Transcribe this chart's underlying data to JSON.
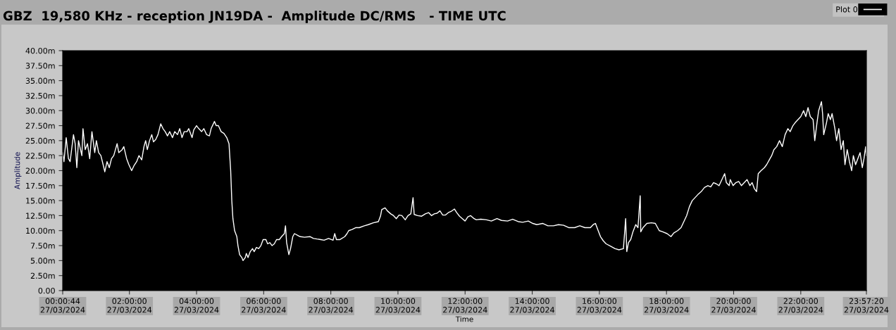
{
  "chart_data": {
    "type": "line",
    "title": "GBZ  19,580 KHz - reception JN19DA -  Amplitude DC/RMS   - TIME UTC",
    "xlabel": "Time",
    "ylabel": "Amplitude",
    "xlim": [
      "2024-03-27T00:00:44",
      "2024-03-27T23:57:20"
    ],
    "xticks": [
      {
        "value": "2024-03-27T00:00:44",
        "label": "00:00:44\n27/03/2024"
      },
      {
        "value": "2024-03-27T02:00",
        "label": "02:00:00\n27/03/2024"
      },
      {
        "value": "2024-03-27T04:00",
        "label": "04:00:00\n27/03/2024"
      },
      {
        "value": "2024-03-27T06:00",
        "label": "06:00:00\n27/03/2024"
      },
      {
        "value": "2024-03-27T08:00",
        "label": "08:00:00\n27/03/2024"
      },
      {
        "value": "2024-03-27T10:00",
        "label": "10:00:00\n27/03/2024"
      },
      {
        "value": "2024-03-27T12:00",
        "label": "12:00:00\n27/03/2024"
      },
      {
        "value": "2024-03-27T14:00",
        "label": "14:00:00\n27/03/2024"
      },
      {
        "value": "2024-03-27T16:00",
        "label": "16:00:00\n27/03/2024"
      },
      {
        "value": "2024-03-27T18:00",
        "label": "18:00:00\n27/03/2024"
      },
      {
        "value": "2024-03-27T20:00",
        "label": "20:00:00\n27/03/2024"
      },
      {
        "value": "2024-03-27T22:00",
        "label": "22:00:00\n27/03/2024"
      },
      {
        "value": "2024-03-27T23:57:20",
        "label": "23:57:20\n27/03/2024"
      }
    ],
    "ylim": [
      0,
      40
    ],
    "yticks": [
      {
        "value": 0,
        "label": "0.00"
      },
      {
        "value": 2.5,
        "label": "2.50m"
      },
      {
        "value": 5,
        "label": "5.00m"
      },
      {
        "value": 7.5,
        "label": "7.50m"
      },
      {
        "value": 10,
        "label": "10.00m"
      },
      {
        "value": 12.5,
        "label": "12.50m"
      },
      {
        "value": 15,
        "label": "15.00m"
      },
      {
        "value": 17.5,
        "label": "17.50m"
      },
      {
        "value": 20,
        "label": "20.00m"
      },
      {
        "value": 22.5,
        "label": "22.50m"
      },
      {
        "value": 25,
        "label": "25.00m"
      },
      {
        "value": 27.5,
        "label": "27.50m"
      },
      {
        "value": 30,
        "label": "30.00m"
      },
      {
        "value": 32.5,
        "label": "32.50m"
      },
      {
        "value": 35,
        "label": "35.00m"
      },
      {
        "value": 37.5,
        "label": "37.50m"
      },
      {
        "value": 40,
        "label": "40.00m"
      }
    ],
    "grid": false,
    "legend": "top right",
    "marker": "none",
    "line_style": "solid",
    "series": [
      {
        "name": "Plot 0",
        "color": "#ffffff",
        "x": [
          "2024-03-27T00:00:44",
          "2024-03-27T00:03",
          "2024-03-27T00:07",
          "2024-03-27T00:11",
          "2024-03-27T00:14",
          "2024-03-27T00:20",
          "2024-03-27T00:23",
          "2024-03-27T00:26",
          "2024-03-27T00:29",
          "2024-03-27T00:35",
          "2024-03-27T00:37",
          "2024-03-27T00:41",
          "2024-03-27T00:45",
          "2024-03-27T00:49",
          "2024-03-27T00:53",
          "2024-03-27T00:58",
          "2024-03-27T01:01",
          "2024-03-27T01:05",
          "2024-03-27T01:09",
          "2024-03-27T01:13",
          "2024-03-27T01:16",
          "2024-03-27T01:20",
          "2024-03-27T01:24",
          "2024-03-27T01:28",
          "2024-03-27T01:32",
          "2024-03-27T01:38",
          "2024-03-27T01:41",
          "2024-03-27T01:47",
          "2024-03-27T01:50",
          "2024-03-27T01:55",
          "2024-03-27T01:59",
          "2024-03-27T02:04",
          "2024-03-27T02:08",
          "2024-03-27T02:13",
          "2024-03-27T02:17",
          "2024-03-27T02:22",
          "2024-03-27T02:26",
          "2024-03-27T02:29",
          "2024-03-27T02:32",
          "2024-03-27T02:36",
          "2024-03-27T02:40",
          "2024-03-27T02:43",
          "2024-03-27T02:47",
          "2024-03-27T02:51",
          "2024-03-27T02:56",
          "2024-03-27T03:00",
          "2024-03-27T03:04",
          "2024-03-27T03:08",
          "2024-03-27T03:12",
          "2024-03-27T03:17",
          "2024-03-27T03:21",
          "2024-03-27T03:26",
          "2024-03-27T03:30",
          "2024-03-27T03:34",
          "2024-03-27T03:38",
          "2024-03-27T03:43",
          "2024-03-27T03:46",
          "2024-03-27T03:52",
          "2024-03-27T03:55",
          "2024-03-27T04:00",
          "2024-03-27T04:04",
          "2024-03-27T04:09",
          "2024-03-27T04:13",
          "2024-03-27T04:18",
          "2024-03-27T04:23",
          "2024-03-27T04:26",
          "2024-03-27T04:32",
          "2024-03-27T04:35",
          "2024-03-27T04:39",
          "2024-03-27T04:44",
          "2024-03-27T04:49",
          "2024-03-27T04:54",
          "2024-03-27T04:58",
          "2024-03-27T05:01",
          "2024-03-27T05:03",
          "2024-03-27T05:05",
          "2024-03-27T05:08",
          "2024-03-27T05:12",
          "2024-03-27T05:14",
          "2024-03-27T05:17",
          "2024-03-27T05:21",
          "2024-03-27T05:23",
          "2024-03-27T05:27",
          "2024-03-27T05:29",
          "2024-03-27T05:32",
          "2024-03-27T05:36",
          "2024-03-27T05:40",
          "2024-03-27T05:43",
          "2024-03-27T05:47",
          "2024-03-27T05:51",
          "2024-03-27T05:55",
          "2024-03-27T05:59",
          "2024-03-27T06:04",
          "2024-03-27T06:07",
          "2024-03-27T06:11",
          "2024-03-27T06:15",
          "2024-03-27T06:19",
          "2024-03-27T06:23",
          "2024-03-27T06:28",
          "2024-03-27T06:32",
          "2024-03-27T06:37",
          "2024-03-27T06:39",
          "2024-03-27T06:41",
          "2024-03-27T06:45",
          "2024-03-27T06:48",
          "2024-03-27T06:52",
          "2024-03-27T06:55",
          "2024-03-27T07:01",
          "2024-03-27T07:05",
          "2024-03-27T07:13",
          "2024-03-27T07:23",
          "2024-03-27T07:29",
          "2024-03-27T07:35",
          "2024-03-27T07:42",
          "2024-03-27T07:48",
          "2024-03-27T07:56",
          "2024-03-27T08:04",
          "2024-03-27T08:07",
          "2024-03-27T08:10",
          "2024-03-27T08:16",
          "2024-03-27T08:25",
          "2024-03-27T08:29",
          "2024-03-27T08:32",
          "2024-03-27T08:38",
          "2024-03-27T08:45",
          "2024-03-27T08:51",
          "2024-03-27T09:00",
          "2024-03-27T09:07",
          "2024-03-27T09:16",
          "2024-03-27T09:25",
          "2024-03-27T09:29",
          "2024-03-27T09:31",
          "2024-03-27T09:37",
          "2024-03-27T09:41",
          "2024-03-27T09:47",
          "2024-03-27T09:52",
          "2024-03-27T09:57",
          "2024-03-27T10:02",
          "2024-03-27T10:07",
          "2024-03-27T10:13",
          "2024-03-27T10:18",
          "2024-03-27T10:23",
          "2024-03-27T10:27",
          "2024-03-27T10:29",
          "2024-03-27T10:35",
          "2024-03-27T10:42",
          "2024-03-27T10:49",
          "2024-03-27T10:55",
          "2024-03-27T11:00",
          "2024-03-27T11:05",
          "2024-03-27T11:10",
          "2024-03-27T11:15",
          "2024-03-27T11:20",
          "2024-03-27T11:25",
          "2024-03-27T11:30",
          "2024-03-27T11:35",
          "2024-03-27T11:41",
          "2024-03-27T11:45",
          "2024-03-27T11:50",
          "2024-03-27T11:55",
          "2024-03-27T12:00",
          "2024-03-27T12:05",
          "2024-03-27T12:10",
          "2024-03-27T12:16",
          "2024-03-27T12:20",
          "2024-03-27T12:28",
          "2024-03-27T12:38",
          "2024-03-27T12:47",
          "2024-03-27T12:57",
          "2024-03-27T13:05",
          "2024-03-27T13:16",
          "2024-03-27T13:25",
          "2024-03-27T13:35",
          "2024-03-27T13:43",
          "2024-03-27T13:53",
          "2024-03-27T14:01",
          "2024-03-27T14:08",
          "2024-03-27T14:19",
          "2024-03-27T14:28",
          "2024-03-27T14:38",
          "2024-03-27T14:47",
          "2024-03-27T14:56",
          "2024-03-27T15:05",
          "2024-03-27T15:16",
          "2024-03-27T15:25",
          "2024-03-27T15:34",
          "2024-03-27T15:44",
          "2024-03-27T15:49",
          "2024-03-27T15:53",
          "2024-03-27T15:57",
          "2024-03-27T16:02",
          "2024-03-27T16:07",
          "2024-03-27T16:12",
          "2024-03-27T16:20",
          "2024-03-27T16:28",
          "2024-03-27T16:35",
          "2024-03-27T16:43",
          "2024-03-27T16:47",
          "2024-03-27T16:49",
          "2024-03-27T16:52",
          "2024-03-27T16:56",
          "2024-03-27T17:00",
          "2024-03-27T17:05",
          "2024-03-27T17:09",
          "2024-03-27T17:13",
          "2024-03-27T17:14",
          "2024-03-27T17:18",
          "2024-03-27T17:25",
          "2024-03-27T17:33",
          "2024-03-27T17:40",
          "2024-03-27T17:47",
          "2024-03-27T17:53",
          "2024-03-27T18:01",
          "2024-03-27T18:08",
          "2024-03-27T18:13",
          "2024-03-27T18:20",
          "2024-03-27T18:26",
          "2024-03-27T18:31",
          "2024-03-27T18:36",
          "2024-03-27T18:41",
          "2024-03-27T18:46",
          "2024-03-27T18:51",
          "2024-03-27T18:56",
          "2024-03-27T19:02",
          "2024-03-27T19:08",
          "2024-03-27T19:14",
          "2024-03-27T19:19",
          "2024-03-27T19:24",
          "2024-03-27T19:29",
          "2024-03-27T19:34",
          "2024-03-27T19:39",
          "2024-03-27T19:44",
          "2024-03-27T19:47",
          "2024-03-27T19:52",
          "2024-03-27T19:54",
          "2024-03-27T19:59",
          "2024-03-27T20:04",
          "2024-03-27T20:09",
          "2024-03-27T20:14",
          "2024-03-27T20:19",
          "2024-03-27T20:24",
          "2024-03-27T20:29",
          "2024-03-27T20:33",
          "2024-03-27T20:37",
          "2024-03-27T20:41",
          "2024-03-27T20:44",
          "2024-03-27T20:49",
          "2024-03-27T20:55",
          "2024-03-27T20:59",
          "2024-03-27T21:05",
          "2024-03-27T21:08",
          "2024-03-27T21:12",
          "2024-03-27T21:17",
          "2024-03-27T21:22",
          "2024-03-27T21:27",
          "2024-03-27T21:32",
          "2024-03-27T21:37",
          "2024-03-27T21:41",
          "2024-03-27T21:46",
          "2024-03-27T21:50",
          "2024-03-27T21:55",
          "2024-03-27T22:00",
          "2024-03-27T22:05",
          "2024-03-27T22:09",
          "2024-03-27T22:13",
          "2024-03-27T22:17",
          "2024-03-27T22:22",
          "2024-03-27T22:25",
          "2024-03-27T22:29",
          "2024-03-27T22:32",
          "2024-03-27T22:37",
          "2024-03-27T22:39",
          "2024-03-27T22:41",
          "2024-03-27T22:46",
          "2024-03-27T22:49",
          "2024-03-27T22:53",
          "2024-03-27T22:56",
          "2024-03-27T23:01",
          "2024-03-27T23:04",
          "2024-03-27T23:08",
          "2024-03-27T23:12",
          "2024-03-27T23:16",
          "2024-03-27T23:19",
          "2024-03-27T23:23",
          "2024-03-27T23:27",
          "2024-03-27T23:31",
          "2024-03-27T23:34",
          "2024-03-27T23:38",
          "2024-03-27T23:42",
          "2024-03-27T23:46",
          "2024-03-27T23:50",
          "2024-03-27T23:53",
          "2024-03-27T23:56",
          "2024-03-27T23:57"
        ],
        "values": [
          23.0,
          21.5,
          25.5,
          22.0,
          21.5,
          26.0,
          24.5,
          20.5,
          25.0,
          22.5,
          27.0,
          23.5,
          24.5,
          22.0,
          26.5,
          23.0,
          25.0,
          23.0,
          22.5,
          21.0,
          19.8,
          21.5,
          20.5,
          22.0,
          22.5,
          24.5,
          23.0,
          23.5,
          24.0,
          22.0,
          21.0,
          20.0,
          20.8,
          21.5,
          22.5,
          21.8,
          24.0,
          25.0,
          23.5,
          25.0,
          26.0,
          24.8,
          25.2,
          26.0,
          27.8,
          27.0,
          26.5,
          25.8,
          26.5,
          25.5,
          26.5,
          26.0,
          27.0,
          25.5,
          26.5,
          26.5,
          27.0,
          25.5,
          26.8,
          27.5,
          27.0,
          26.5,
          27.0,
          26.0,
          25.8,
          27.0,
          28.2,
          27.5,
          27.5,
          26.5,
          26.2,
          25.5,
          24.5,
          20.0,
          15.0,
          12.0,
          10.0,
          9.0,
          7.5,
          6.0,
          5.5,
          5.0,
          5.5,
          6.2,
          5.5,
          6.5,
          7.0,
          6.5,
          7.2,
          7.0,
          7.5,
          8.5,
          8.5,
          7.8,
          8.0,
          7.5,
          7.8,
          8.5,
          8.5,
          9.0,
          9.5,
          10.8,
          8.0,
          6.0,
          7.0,
          9.0,
          9.5,
          9.2,
          9.0,
          8.9,
          9.0,
          8.7,
          8.6,
          8.5,
          8.4,
          8.7,
          8.4,
          9.5,
          8.5,
          8.5,
          9.0,
          9.5,
          10.0,
          10.2,
          10.5,
          10.5,
          10.8,
          11.0,
          11.3,
          11.5,
          12.5,
          13.5,
          13.8,
          13.3,
          12.8,
          12.5,
          12.0,
          12.6,
          12.5,
          11.8,
          12.5,
          12.8,
          15.5,
          12.7,
          12.5,
          12.4,
          12.8,
          13.0,
          12.5,
          12.8,
          12.9,
          13.3,
          12.6,
          12.6,
          13.0,
          13.2,
          13.6,
          13.0,
          12.4,
          12.0,
          11.6,
          12.3,
          12.5,
          12.0,
          11.8,
          11.9,
          11.8,
          11.6,
          12.0,
          11.7,
          11.6,
          11.9,
          11.5,
          11.4,
          11.6,
          11.2,
          11.0,
          11.2,
          10.8,
          10.8,
          11.0,
          10.9,
          10.5,
          10.5,
          10.8,
          10.5,
          10.5,
          11.0,
          11.2,
          10.2,
          9.0,
          8.3,
          7.8,
          7.4,
          7.0,
          6.8,
          7.0,
          12.0,
          6.5,
          8.0,
          8.5,
          9.8,
          11.0,
          10.5,
          15.8,
          9.8,
          10.5,
          11.2,
          11.3,
          11.2,
          10.0,
          9.8,
          9.5,
          9.0,
          9.6,
          10.0,
          10.5,
          11.5,
          12.5,
          14.0,
          15.0,
          15.5,
          16.0,
          16.5,
          17.2,
          17.5,
          17.3,
          18.0,
          17.8,
          17.5,
          18.5,
          19.5,
          18.0,
          17.5,
          18.5,
          17.5,
          18.0,
          18.2,
          17.5,
          18.0,
          18.5,
          17.5,
          18.0,
          17.0,
          16.5,
          19.5,
          20.0,
          20.5,
          21.0,
          22.0,
          22.5,
          23.5,
          24.0,
          25.0,
          24.0,
          26.0,
          27.0,
          26.5,
          27.5,
          28.0,
          28.5,
          29.0,
          30.0,
          29.0,
          30.5,
          29.0,
          28.5,
          25.0,
          28.0,
          30.0,
          31.5,
          29.5,
          26.0,
          28.0,
          29.5,
          28.5,
          29.5,
          27.0,
          25.0,
          27.0,
          23.5,
          25.0,
          21.0,
          23.5,
          21.5,
          20.0,
          22.5,
          21.0,
          22.0,
          23.0,
          20.5,
          22.0,
          24.0,
          22.5
        ]
      }
    ]
  }
}
